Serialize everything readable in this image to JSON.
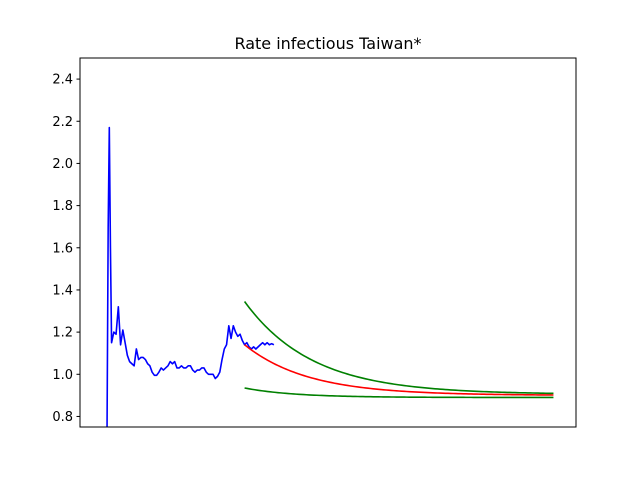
{
  "chart_data": {
    "type": "line",
    "title": "Rate infectious Taiwan*",
    "xlabel": "",
    "ylabel": "",
    "xlim": [
      0,
      220
    ],
    "ylim": [
      0.75,
      2.5
    ],
    "yticks": [
      0.8,
      1.0,
      1.2,
      1.4,
      1.6,
      1.8,
      2.0,
      2.2,
      2.4
    ],
    "ytick_labels": [
      "0.8",
      "1.0",
      "1.2",
      "1.4",
      "1.6",
      "1.8",
      "2.0",
      "2.2",
      "2.4"
    ],
    "grid": false,
    "series": [
      {
        "color": "#0000ff",
        "x": [
          12,
          12.5,
          13,
          13.5,
          14,
          15,
          16,
          17,
          18,
          19,
          20,
          21,
          22,
          23,
          24,
          25,
          26,
          27,
          28,
          29,
          30,
          31,
          32,
          33,
          34,
          35,
          36,
          37,
          38,
          39,
          40,
          41,
          42,
          43,
          44,
          45,
          46,
          47,
          48,
          49,
          50,
          51,
          52,
          53,
          54,
          55,
          56,
          57,
          58,
          59,
          60,
          61,
          62,
          63,
          64,
          65,
          66,
          67,
          68,
          69,
          70,
          71,
          72,
          73,
          74,
          75,
          76,
          77,
          78,
          79,
          80,
          81,
          82,
          83,
          84,
          85,
          86
        ],
        "y": [
          0.75,
          1.7,
          2.17,
          1.6,
          1.15,
          1.2,
          1.19,
          1.32,
          1.14,
          1.21,
          1.15,
          1.09,
          1.06,
          1.05,
          1.04,
          1.12,
          1.07,
          1.08,
          1.08,
          1.07,
          1.05,
          1.04,
          1.01,
          0.995,
          0.995,
          1.01,
          1.03,
          1.02,
          1.03,
          1.04,
          1.06,
          1.05,
          1.06,
          1.03,
          1.03,
          1.04,
          1.03,
          1.03,
          1.04,
          1.04,
          1.02,
          1.01,
          1.02,
          1.02,
          1.03,
          1.03,
          1.01,
          1.0,
          1.0,
          1.0,
          0.98,
          0.99,
          1.01,
          1.07,
          1.12,
          1.14,
          1.23,
          1.17,
          1.23,
          1.2,
          1.18,
          1.19,
          1.16,
          1.14,
          1.15,
          1.13,
          1.12,
          1.13,
          1.12,
          1.13,
          1.14,
          1.15,
          1.14,
          1.15,
          1.14,
          1.145,
          1.14
        ]
      },
      {
        "color": "#ff0000",
        "curve": {
          "x0": 73,
          "x1": 210,
          "start": 1.14,
          "end": 0.9,
          "decay": 28
        }
      },
      {
        "color": "#008000",
        "curve": {
          "x0": 73,
          "x1": 210,
          "start": 1.345,
          "end": 0.905,
          "decay": 30
        }
      },
      {
        "color": "#008000",
        "curve": {
          "x0": 73,
          "x1": 210,
          "start": 0.935,
          "end": 0.89,
          "decay": 22
        }
      }
    ]
  }
}
